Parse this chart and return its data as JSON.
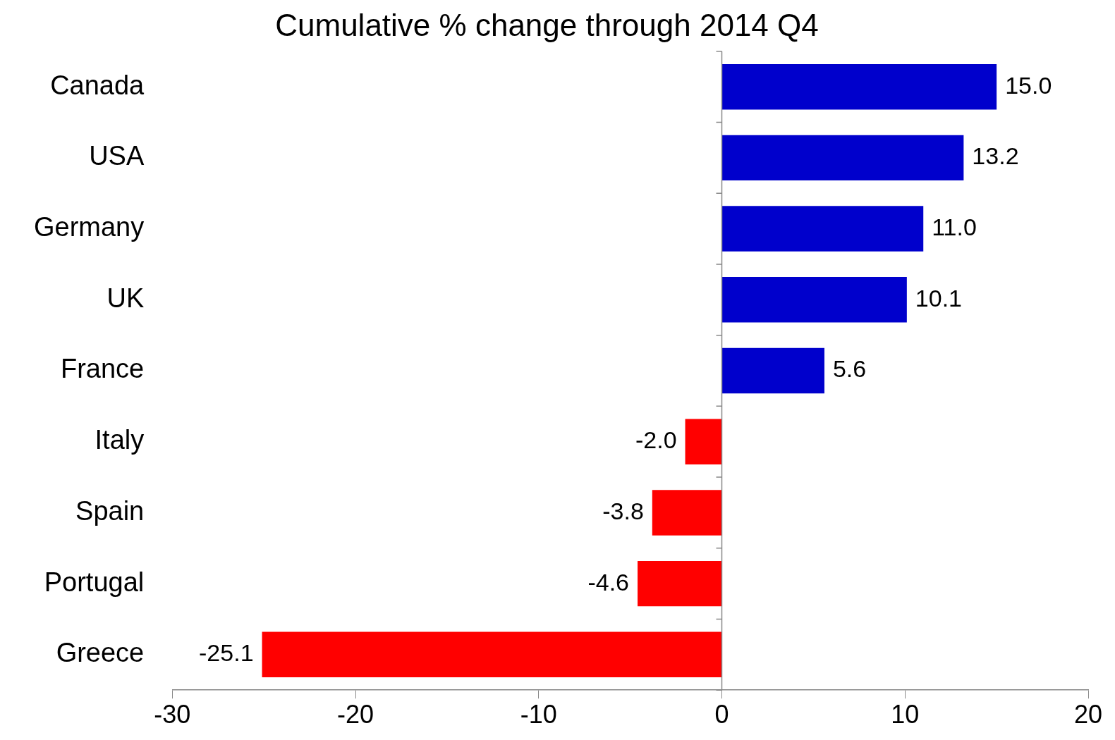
{
  "chart_data": {
    "type": "bar",
    "orientation": "horizontal",
    "title": "Cumulative % change through 2014 Q4",
    "categories": [
      "Canada",
      "USA",
      "Germany",
      "UK",
      "France",
      "Italy",
      "Spain",
      "Portugal",
      "Greece"
    ],
    "values": [
      15.0,
      13.2,
      11.0,
      10.1,
      5.6,
      -2.0,
      -3.8,
      -4.6,
      -25.1
    ],
    "colors": [
      "#0000cc",
      "#0000cc",
      "#0000cc",
      "#0000cc",
      "#0000cc",
      "#ff0000",
      "#ff0000",
      "#ff0000",
      "#ff0000"
    ],
    "value_labels": [
      "15.0",
      "13.2",
      "11.0",
      "10.1",
      "5.6",
      "-2.0",
      "-3.8",
      "-4.6",
      "-25.1"
    ],
    "xlim": [
      -30,
      20
    ],
    "xticks": [
      -30,
      -20,
      -10,
      0,
      10,
      20
    ]
  }
}
